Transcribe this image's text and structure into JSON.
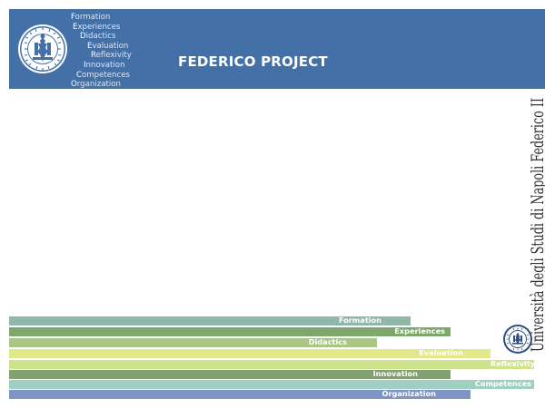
{
  "header": {
    "background": "#4470a8",
    "logo": "university-seal-icon",
    "acrostic": [
      {
        "initial": "F",
        "rest": "ormation"
      },
      {
        "initial": "E",
        "rest": "xperiences"
      },
      {
        "initial": "D",
        "rest": "idactics"
      },
      {
        "initial": "E",
        "rest": "valuation"
      },
      {
        "initial": "R",
        "rest": "eflexivity"
      },
      {
        "initial": "I",
        "rest": "nnovation"
      },
      {
        "initial": "C",
        "rest": "ompetences"
      },
      {
        "initial": "O",
        "rest": "rganization"
      }
    ],
    "title": "FEDERICO PROJECT"
  },
  "vertical_text": "Università degli Studi di Napoli Federico II",
  "bars": [
    {
      "label": "Formation",
      "color": "#8fb8a8"
    },
    {
      "label": "Experiences",
      "color": "#7ea76a"
    },
    {
      "label": "Didactics",
      "color": "#a9c783"
    },
    {
      "label": "Evaluation",
      "color": "#e2e98a"
    },
    {
      "label": "Reflexivity",
      "color": "#cfe38c"
    },
    {
      "label": "Innovation",
      "color": "#7fa26e"
    },
    {
      "label": "Competences",
      "color": "#9ecfc0"
    },
    {
      "label": "Organization",
      "color": "#7d94c4"
    }
  ],
  "footer_logo": "university-seal-icon"
}
